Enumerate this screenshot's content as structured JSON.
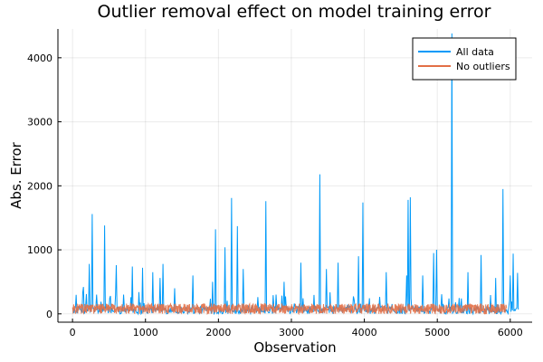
{
  "chart_data": {
    "type": "line",
    "title": "Outlier removal effect on model training error",
    "xlabel": "Observation",
    "ylabel": "Abs. Error",
    "xlim": [
      -200,
      6300
    ],
    "ylim": [
      -130,
      4450
    ],
    "xticks": [
      0,
      1000,
      2000,
      3000,
      4000,
      5000,
      6000
    ],
    "yticks": [
      0,
      1000,
      2000,
      3000,
      4000
    ],
    "xtick_labels": [
      "0",
      "1000",
      "2000",
      "3000",
      "4000",
      "5000",
      "6000"
    ],
    "ytick_labels": [
      "0",
      "1000",
      "2000",
      "3000",
      "4000"
    ],
    "grid": true,
    "legend": "top-right",
    "series": [
      {
        "name": "All data",
        "color": "#009af9",
        "n": 6110,
        "baseline_level": 60,
        "spikes": [
          {
            "x": 150,
            "y": 420
          },
          {
            "x": 230,
            "y": 780
          },
          {
            "x": 270,
            "y": 1560
          },
          {
            "x": 330,
            "y": 300
          },
          {
            "x": 440,
            "y": 1380
          },
          {
            "x": 520,
            "y": 280
          },
          {
            "x": 600,
            "y": 760
          },
          {
            "x": 700,
            "y": 300
          },
          {
            "x": 820,
            "y": 740
          },
          {
            "x": 960,
            "y": 720
          },
          {
            "x": 1100,
            "y": 650
          },
          {
            "x": 1200,
            "y": 560
          },
          {
            "x": 1240,
            "y": 780
          },
          {
            "x": 1400,
            "y": 400
          },
          {
            "x": 1650,
            "y": 600
          },
          {
            "x": 1920,
            "y": 500
          },
          {
            "x": 1960,
            "y": 1320
          },
          {
            "x": 2090,
            "y": 1040
          },
          {
            "x": 2180,
            "y": 1810
          },
          {
            "x": 2260,
            "y": 1370
          },
          {
            "x": 2340,
            "y": 700
          },
          {
            "x": 2650,
            "y": 1760
          },
          {
            "x": 2900,
            "y": 500
          },
          {
            "x": 3130,
            "y": 800
          },
          {
            "x": 3390,
            "y": 2180
          },
          {
            "x": 3480,
            "y": 700
          },
          {
            "x": 3640,
            "y": 800
          },
          {
            "x": 3920,
            "y": 900
          },
          {
            "x": 3980,
            "y": 1740
          },
          {
            "x": 4300,
            "y": 650
          },
          {
            "x": 4580,
            "y": 600
          },
          {
            "x": 4600,
            "y": 1780
          },
          {
            "x": 4630,
            "y": 1820
          },
          {
            "x": 4800,
            "y": 600
          },
          {
            "x": 4950,
            "y": 950
          },
          {
            "x": 4990,
            "y": 1000
          },
          {
            "x": 5200,
            "y": 4380
          },
          {
            "x": 5420,
            "y": 650
          },
          {
            "x": 5600,
            "y": 920
          },
          {
            "x": 5800,
            "y": 560
          },
          {
            "x": 5900,
            "y": 1950
          },
          {
            "x": 6000,
            "y": 600
          },
          {
            "x": 6040,
            "y": 940
          },
          {
            "x": 6100,
            "y": 640
          }
        ]
      },
      {
        "name": "No outliers",
        "color": "#e26f46",
        "n": 5950,
        "baseline_level": 50,
        "max": 160
      }
    ]
  }
}
